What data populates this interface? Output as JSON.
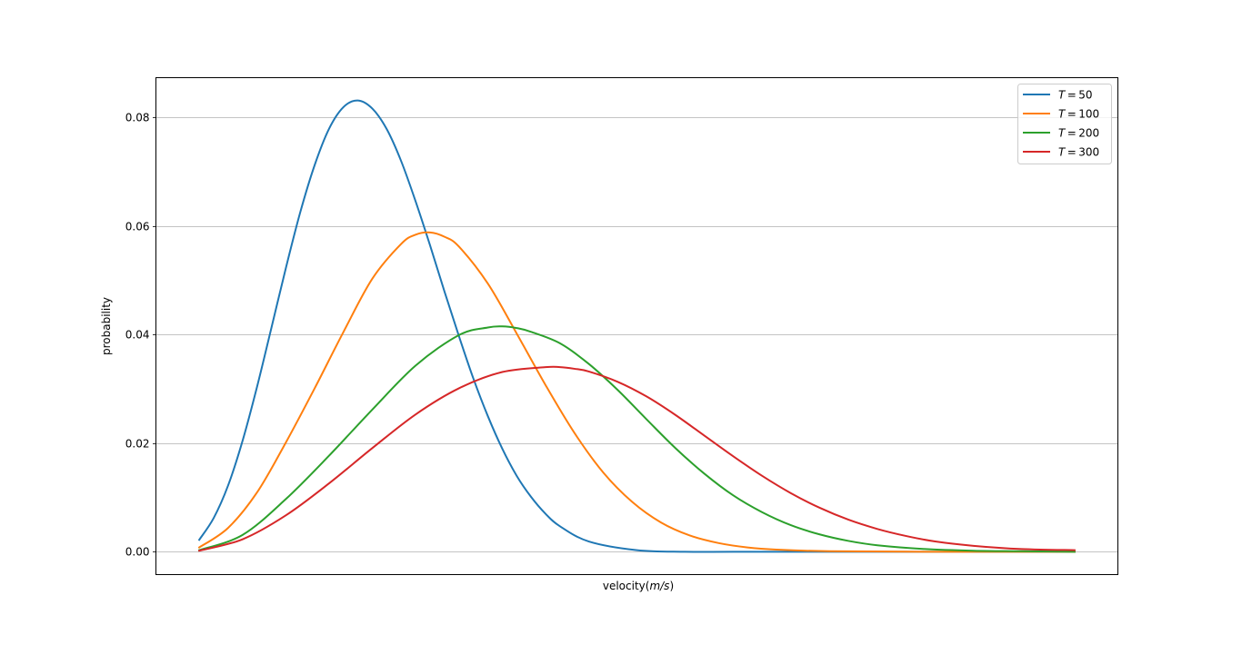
{
  "chart_data": {
    "type": "line",
    "title": "",
    "xlabel": "velocity",
    "xlabel_unit": "m/s",
    "ylabel": "probability",
    "xlim": [
      0,
      1
    ],
    "ylim": [
      -0.0042,
      0.0873
    ],
    "y_ticks": [
      0.0,
      0.02,
      0.04,
      0.06,
      0.08
    ],
    "y_tick_labels": [
      "0.00",
      "0.02",
      "0.04",
      "0.06",
      "0.08"
    ],
    "x_ticks_shown": false,
    "grid": "y",
    "legend_position": "top-right",
    "series": [
      {
        "name": "T = 50",
        "legend_var": "T",
        "legend_value": "50",
        "color": "#1f77b4",
        "x": [
          0.045,
          0.06,
          0.075,
          0.09,
          0.105,
          0.12,
          0.135,
          0.15,
          0.165,
          0.18,
          0.195,
          0.21,
          0.225,
          0.24,
          0.255,
          0.27,
          0.285,
          0.3,
          0.315,
          0.33,
          0.345,
          0.36,
          0.375,
          0.39,
          0.405,
          0.42,
          0.45,
          0.5,
          0.55,
          0.6,
          0.7,
          0.8,
          0.955
        ],
        "y": [
          0.0022,
          0.0062,
          0.0122,
          0.0204,
          0.0303,
          0.0412,
          0.0522,
          0.0625,
          0.0712,
          0.0779,
          0.0819,
          0.0831,
          0.0816,
          0.0778,
          0.0719,
          0.0645,
          0.0564,
          0.0479,
          0.0397,
          0.0319,
          0.025,
          0.019,
          0.014,
          0.0101,
          0.007,
          0.0047,
          0.0019,
          0.0003,
          0.0,
          0.0,
          0.0,
          0.0,
          0.0
        ]
      },
      {
        "name": "T = 100",
        "legend_var": "T",
        "legend_value": "100",
        "color": "#ff7f0e",
        "x": [
          0.045,
          0.075,
          0.105,
          0.135,
          0.165,
          0.195,
          0.225,
          0.255,
          0.27,
          0.285,
          0.3,
          0.315,
          0.345,
          0.375,
          0.405,
          0.435,
          0.465,
          0.495,
          0.525,
          0.555,
          0.585,
          0.615,
          0.645,
          0.7,
          0.8,
          0.955
        ],
        "y": [
          0.0008,
          0.0044,
          0.0109,
          0.0201,
          0.0301,
          0.0405,
          0.0503,
          0.0567,
          0.0584,
          0.0588,
          0.058,
          0.0562,
          0.0494,
          0.0402,
          0.0307,
          0.0219,
          0.0146,
          0.0092,
          0.0054,
          0.003,
          0.0016,
          0.0008,
          0.0004,
          0.0001,
          0.0,
          0.0
        ]
      },
      {
        "name": "T = 200",
        "legend_var": "T",
        "legend_value": "200",
        "color": "#2ca02c",
        "x": [
          0.045,
          0.09,
          0.135,
          0.18,
          0.225,
          0.27,
          0.315,
          0.345,
          0.36,
          0.375,
          0.39,
          0.42,
          0.45,
          0.48,
          0.51,
          0.54,
          0.57,
          0.6,
          0.63,
          0.66,
          0.69,
          0.72,
          0.75,
          0.8,
          0.85,
          0.9,
          0.955
        ],
        "y": [
          0.0003,
          0.0031,
          0.0097,
          0.0177,
          0.0262,
          0.0343,
          0.0399,
          0.0413,
          0.0415,
          0.0412,
          0.0405,
          0.0384,
          0.0346,
          0.0298,
          0.0244,
          0.0191,
          0.0144,
          0.0104,
          0.0073,
          0.0049,
          0.0032,
          0.002,
          0.0012,
          0.0005,
          0.0002,
          0.0001,
          0.0
        ]
      },
      {
        "name": "T = 300",
        "legend_var": "T",
        "legend_value": "300",
        "color": "#d62728",
        "x": [
          0.045,
          0.09,
          0.135,
          0.18,
          0.225,
          0.27,
          0.315,
          0.36,
          0.405,
          0.42,
          0.435,
          0.45,
          0.48,
          0.51,
          0.54,
          0.57,
          0.6,
          0.63,
          0.66,
          0.69,
          0.72,
          0.75,
          0.78,
          0.81,
          0.85,
          0.9,
          0.955
        ],
        "y": [
          0.0002,
          0.0023,
          0.0067,
          0.0126,
          0.0191,
          0.0253,
          0.0301,
          0.0331,
          0.034,
          0.034,
          0.0337,
          0.0332,
          0.0313,
          0.0286,
          0.0252,
          0.0214,
          0.0176,
          0.014,
          0.0108,
          0.0081,
          0.0059,
          0.0042,
          0.0029,
          0.0019,
          0.0011,
          0.0005,
          0.0003
        ]
      }
    ]
  }
}
